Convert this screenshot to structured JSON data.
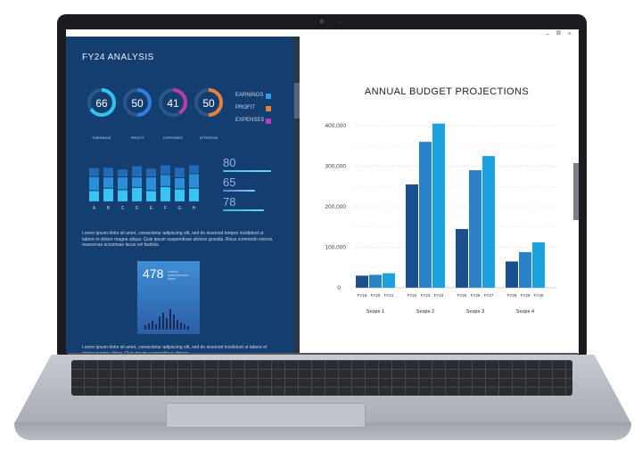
{
  "window": {
    "controls": [
      "–",
      "⧉",
      "×"
    ]
  },
  "dashboard": {
    "title": "FY24 ANALYSIS",
    "donuts": [
      {
        "value": "66",
        "label": "EARNINGS",
        "color": "#35c2ee",
        "fill": 0.66
      },
      {
        "value": "50",
        "label": "PROFIT",
        "color": "#2f7fe0",
        "fill": 0.5
      },
      {
        "value": "41",
        "label": "EXPENSES",
        "color": "#c13aa6",
        "fill": 0.41
      },
      {
        "value": "50",
        "label": "ATTRITION",
        "color": "#e9803a",
        "fill": 0.5
      }
    ],
    "legend": [
      {
        "label": "EARNINGS",
        "color": "#2f9be8"
      },
      {
        "label": "PROFIT",
        "color": "#e0893a"
      },
      {
        "label": "EXPENSES",
        "color": "#b33ec4"
      }
    ],
    "bar_categories": [
      "A",
      "B",
      "C",
      "D",
      "E",
      "F",
      "G",
      "H"
    ],
    "bar_levels": [
      [
        0.7,
        0.88,
        0.55
      ],
      [
        0.85,
        0.7,
        0.6
      ],
      [
        0.75,
        0.8,
        0.5
      ],
      [
        0.9,
        0.65,
        0.7
      ],
      [
        0.7,
        0.85,
        0.55
      ],
      [
        0.95,
        0.75,
        0.6
      ],
      [
        0.8,
        0.7,
        0.65
      ],
      [
        0.85,
        0.9,
        0.55
      ]
    ],
    "stats": [
      {
        "value": "80",
        "color": "#3dc4f1"
      },
      {
        "value": "65",
        "color": "#8a6ae3"
      },
      {
        "value": "78",
        "color": "#27c1c9"
      }
    ],
    "paragraph1": "Lorem ipsum dolor sit amet, consectetur adipiscing elit, sed do eiusmod tempor incididunt ut labore et dolore magna aliqua. Quis ipsum suspendisse ultrices gravida. Risus commodo viverra maecenas accumsan lacus vel facilisis.",
    "card": {
      "value": "478",
      "text": "CAPITAL PERFORMANCE INDEX"
    },
    "paragraph2": "Lorem ipsum dolor sit amet, consectetur adipiscing elit, sed do eiusmod incididunt ut labore et dolore magna aliqua. Quis ipsum suspendisse ultrices"
  },
  "chart_data": {
    "type": "bar",
    "title": "ANNUAL BUDGET PROJECTIONS",
    "ylim": [
      0,
      400000
    ],
    "yticks": [
      "0",
      "100,000",
      "200,000",
      "300,000",
      "400,000"
    ],
    "groups": [
      {
        "name": "Scope 1",
        "categories": [
          "FY19",
          "FY20",
          "FY21"
        ],
        "values": [
          30000,
          32000,
          36000
        ]
      },
      {
        "name": "Scope 2",
        "categories": [
          "FY22",
          "FY23",
          "FY24"
        ],
        "values": [
          255000,
          360000,
          405000
        ]
      },
      {
        "name": "Scope 3",
        "categories": [
          "FY25",
          "FY26",
          "FY27"
        ],
        "values": [
          145000,
          290000,
          325000
        ]
      },
      {
        "name": "Scope 4",
        "categories": [
          "FY28",
          "FY29",
          "FY30"
        ],
        "values": [
          65000,
          88000,
          112000
        ]
      }
    ],
    "colors": [
      "#1c4f8f",
      "#2a83c6",
      "#1aa3df"
    ],
    "grid": true
  }
}
